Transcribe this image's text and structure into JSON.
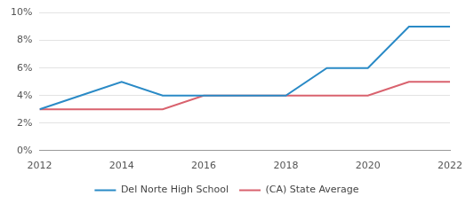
{
  "chart_data": {
    "type": "line",
    "x": [
      2012,
      2013,
      2014,
      2015,
      2016,
      2017,
      2018,
      2019,
      2020,
      2021,
      2022
    ],
    "series": [
      {
        "name": "Del Norte High School",
        "color": "#2a8ac6",
        "values": [
          3,
          4,
          5,
          4,
          4,
          4,
          4,
          6,
          6,
          9,
          9
        ]
      },
      {
        "name": "(CA) State Average",
        "color": "#d9626e",
        "values": [
          3,
          3,
          3,
          3,
          4,
          4,
          4,
          4,
          4,
          5,
          5
        ]
      }
    ],
    "xlim": [
      2012,
      2022
    ],
    "xticks": [
      2012,
      2014,
      2016,
      2018,
      2020,
      2022
    ],
    "ylim": [
      0,
      10
    ],
    "yticks": [
      {
        "value": 0,
        "label": "0%"
      },
      {
        "value": 2,
        "label": "2%"
      },
      {
        "value": 4,
        "label": "4%"
      },
      {
        "value": 6,
        "label": "6%"
      },
      {
        "value": 8,
        "label": "8%"
      },
      {
        "value": 10,
        "label": "10%"
      }
    ],
    "grid": true,
    "legend": "bottom"
  }
}
